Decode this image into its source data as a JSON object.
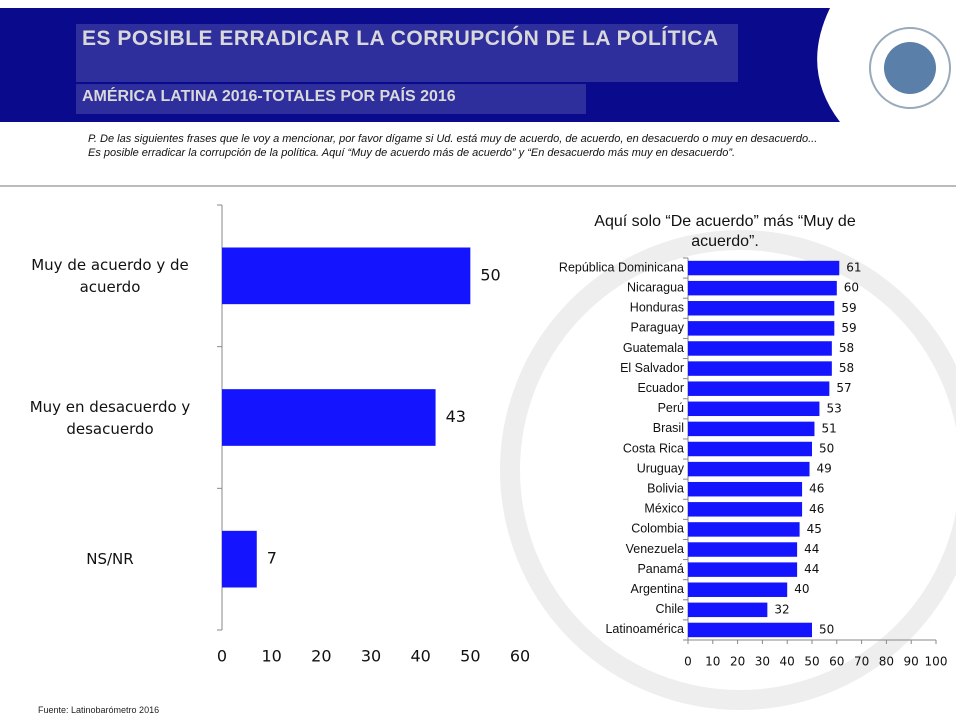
{
  "header": {
    "title": "ES POSIBLE ERRADICAR LA CORRUPCIÓN DE LA POLÍTICA",
    "subtitle": "AMÉRICA LATINA 2016-TOTALES POR PAÍS 2016"
  },
  "question": "P. De las siguientes frases que le voy a mencionar, por favor dígame si Ud. está muy de acuerdo, de acuerdo, en desacuerdo o muy en desacuerdo... Es posible erradicar la corrupción de la política. Aquí “Muy de acuerdo más de acuerdo” y “En desacuerdo más muy en desacuerdo”.",
  "source": "Fuente: Latinobarómetro 2016",
  "chart_data": [
    {
      "type": "hbar",
      "categories": [
        "Muy de acuerdo y de acuerdo",
        "Muy en desacuerdo y desacuerdo",
        "NS/NR"
      ],
      "values": [
        50,
        43,
        7
      ],
      "color": "#1414ff",
      "xlim": [
        0,
        60
      ],
      "xticks": [
        0,
        10,
        20,
        30,
        40,
        50,
        60
      ]
    },
    {
      "type": "hbar",
      "title": "Aquí solo “De acuerdo” más “Muy de acuerdo”.",
      "categories": [
        "República Dominicana",
        "Nicaragua",
        "Honduras",
        "Paraguay",
        "Guatemala",
        "El Salvador",
        "Ecuador",
        "Perú",
        "Brasil",
        "Costa Rica",
        "Uruguay",
        "Bolivia",
        "México",
        "Colombia",
        "Venezuela",
        "Panamá",
        "Argentina",
        "Chile",
        "Latinoamérica"
      ],
      "values": [
        61,
        60,
        59,
        59,
        58,
        58,
        57,
        53,
        51,
        50,
        49,
        46,
        46,
        45,
        44,
        44,
        40,
        32,
        50
      ],
      "color": "#1414ff",
      "xlim": [
        0,
        100
      ],
      "xticks": [
        0,
        10,
        20,
        30,
        40,
        50,
        60,
        70,
        80,
        90,
        100
      ]
    }
  ]
}
